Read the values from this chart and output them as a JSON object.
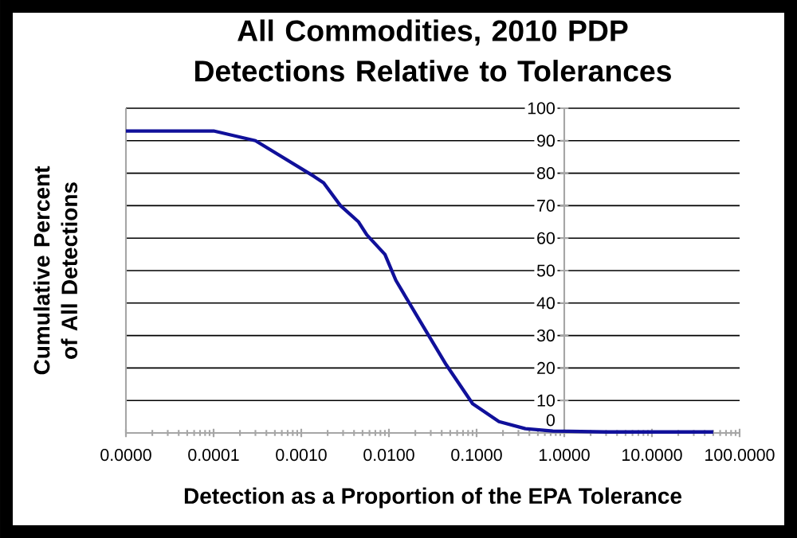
{
  "chart_data": {
    "type": "line",
    "title": "All Commodities, 2010 PDP Detections Relative to Tolerances",
    "xlabel": "Detection as a Proportion of the EPA Tolerance",
    "ylabel": "Cumulative Percent of All Detections",
    "log": "x",
    "grid": "y",
    "color": "#10109a",
    "xlim": [
      1e-05,
      100
    ],
    "ylim": [
      0,
      100
    ],
    "xticks": [
      {
        "value": 1e-05,
        "label": "0.0000"
      },
      {
        "value": 0.0001,
        "label": "0.0001"
      },
      {
        "value": 0.001,
        "label": "0.0010"
      },
      {
        "value": 0.01,
        "label": "0.0100"
      },
      {
        "value": 0.1,
        "label": "0.1000"
      },
      {
        "value": 1,
        "label": "1.0000"
      },
      {
        "value": 10,
        "label": "10.0000"
      },
      {
        "value": 100,
        "label": "100.0000"
      }
    ],
    "yticks": [
      0,
      10,
      20,
      30,
      40,
      50,
      60,
      70,
      80,
      90,
      100
    ],
    "x": [
      1e-05,
      0.0001,
      0.0003,
      0.0014,
      0.0018,
      0.0028,
      0.0045,
      0.0056,
      0.009,
      0.012,
      0.022,
      0.045,
      0.09,
      0.18,
      0.36,
      0.74,
      1.1,
      3,
      50
    ],
    "values": [
      93,
      93,
      90,
      79,
      77,
      70,
      65,
      61,
      55,
      47,
      35,
      21,
      9,
      3.5,
      1.3,
      0.6,
      0.5,
      0.3,
      0.3
    ]
  }
}
